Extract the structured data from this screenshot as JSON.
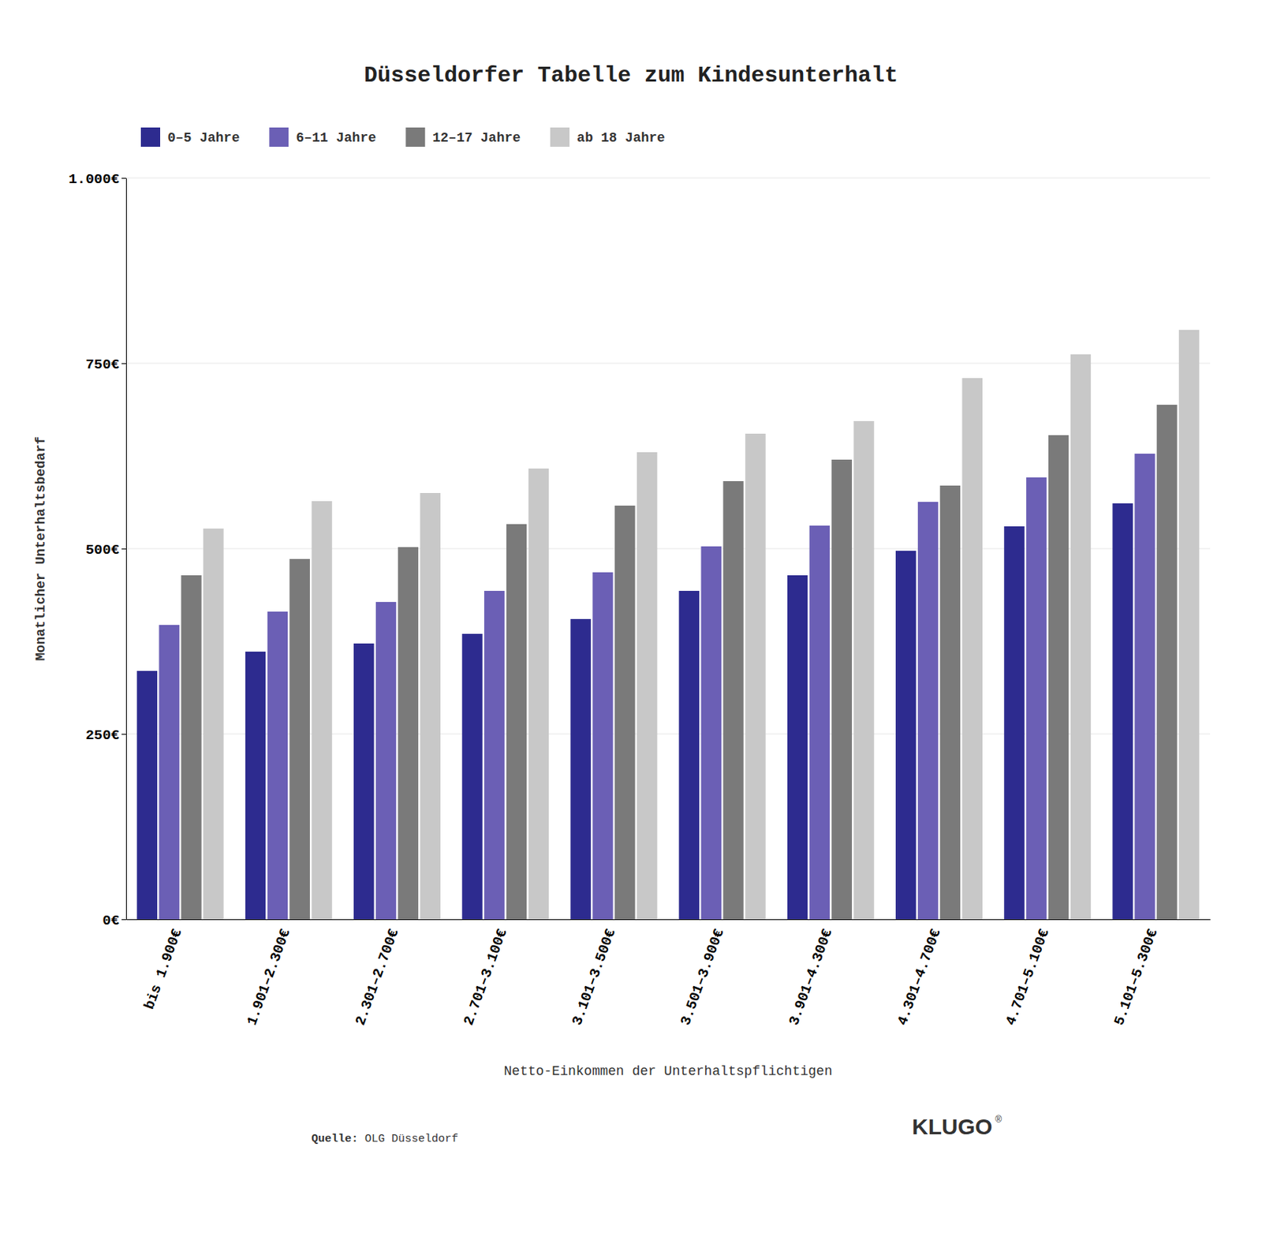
{
  "chart_data": {
    "type": "bar",
    "title": "Düsseldorfer Tabelle zum Kindesunterhalt",
    "x_label": "Netto-Einkommen der Unterhaltspflichtigen",
    "y_label": "Monatlicher Unterhaltsbedarf",
    "categories": [
      "bis 1.900€",
      "1.901–2.300€",
      "2.301–2.700€",
      "2.701–3.100€",
      "3.101–3.500€",
      "3.501–3.900€",
      "3.901–4.300€",
      "4.301–4.700€",
      "4.701–5.100€",
      "5.101–5.300€"
    ],
    "series": [
      {
        "name": "0–5 Jahre",
        "color": "#2d2b8f",
        "values": [
          335,
          361,
          372,
          385,
          405,
          443,
          464,
          497,
          530,
          561
        ]
      },
      {
        "name": "6–11 Jahre",
        "color": "#6b5fb5",
        "values": [
          397,
          415,
          428,
          443,
          468,
          503,
          531,
          563,
          596,
          628
        ]
      },
      {
        "name": "12–17 Jahre",
        "color": "#7a7a7a",
        "values": [
          464,
          486,
          502,
          533,
          558,
          591,
          620,
          585,
          653,
          694
        ]
      },
      {
        "name": "ab 18 Jahre",
        "color": "#c8c8c8",
        "values": [
          527,
          564,
          575,
          608,
          630,
          655,
          672,
          730,
          762,
          795
        ]
      }
    ],
    "ylim": [
      0,
      1000
    ],
    "yticks": [
      {
        "value": 0,
        "label": "0€"
      },
      {
        "value": 250,
        "label": "250€"
      },
      {
        "value": 500,
        "label": "500€"
      },
      {
        "value": 750,
        "label": "750€"
      },
      {
        "value": 1000,
        "label": "1.000€"
      }
    ],
    "grid": true,
    "legend": "upper left",
    "annotations": [
      "Quelle:",
      "OLG Düsseldorf",
      "KLUGO",
      "®"
    ]
  }
}
